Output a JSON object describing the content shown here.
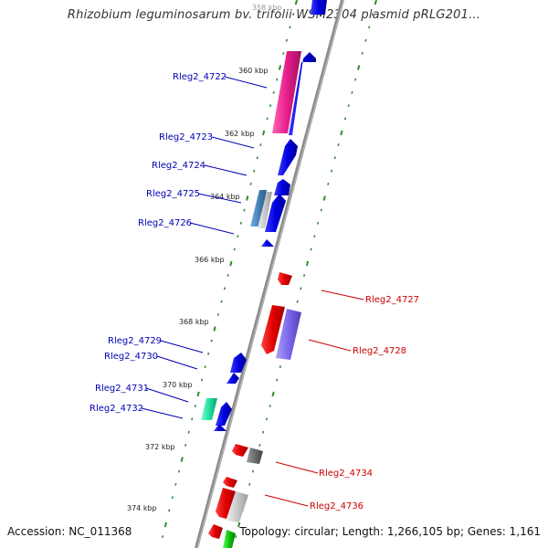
{
  "title": "Rhizobium leguminosarum bv. trifolii WSM2304 plasmid pRLG201...",
  "footer": {
    "accession": "Accession: NC_011368",
    "summary": "Topology: circular; Length: 1,266,105 bp; Genes: 1,161"
  },
  "colors": {
    "forward_label": "#0000b4",
    "reverse_label": "#cc0000",
    "tick": "#2e8b2e",
    "backbone": "#8c8c8c"
  },
  "ticks": [
    {
      "label": "358 kbp"
    },
    {
      "label": "360 kbp"
    },
    {
      "label": "362 kbp"
    },
    {
      "label": "364 kbp"
    },
    {
      "label": "366 kbp"
    },
    {
      "label": "368 kbp"
    },
    {
      "label": "370 kbp"
    },
    {
      "label": "372 kbp"
    },
    {
      "label": "374 kbp"
    }
  ],
  "forward_genes": [
    {
      "label": "Rleg2_4722"
    },
    {
      "label": "Rleg2_4723"
    },
    {
      "label": "Rleg2_4724"
    },
    {
      "label": "Rleg2_4725"
    },
    {
      "label": "Rleg2_4726"
    },
    {
      "label": "Rleg2_4729"
    },
    {
      "label": "Rleg2_4730"
    },
    {
      "label": "Rleg2_4731"
    },
    {
      "label": "Rleg2_4732"
    }
  ],
  "reverse_genes": [
    {
      "label": "Rleg2_4727"
    },
    {
      "label": "Rleg2_4728"
    },
    {
      "label": "Rleg2_4734"
    },
    {
      "label": "Rleg2_4736"
    }
  ]
}
